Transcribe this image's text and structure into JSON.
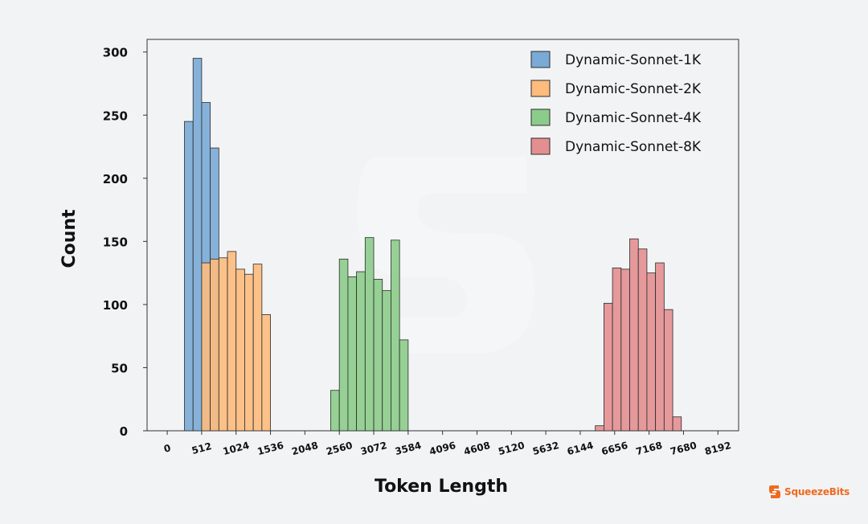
{
  "chart_data": {
    "type": "bar",
    "subtype": "histogram",
    "xlabel": "Token Length",
    "ylabel": "Count",
    "xlim": [
      -300,
      8500
    ],
    "ylim": [
      0,
      310
    ],
    "xticks": [
      0,
      512,
      1024,
      1536,
      2048,
      2560,
      3072,
      3584,
      4096,
      4608,
      5120,
      5632,
      6144,
      6656,
      7168,
      7680,
      8192
    ],
    "yticks": [
      0,
      50,
      100,
      150,
      200,
      250,
      300
    ],
    "grid": false,
    "legend_position": "top-right",
    "series": [
      {
        "name": "Dynamic-Sonnet-1K",
        "color": "#7aaad6",
        "bin_edges": [
          0,
          256,
          384,
          512,
          640,
          768
        ],
        "values": [
          0,
          245,
          295,
          260,
          224
        ]
      },
      {
        "name": "Dynamic-Sonnet-2K",
        "color": "#fdbb7c",
        "bin_edges": [
          512,
          640,
          768,
          896,
          1024,
          1152,
          1280,
          1408,
          1536
        ],
        "values": [
          133,
          136,
          137,
          142,
          128,
          124,
          132,
          92
        ]
      },
      {
        "name": "Dynamic-Sonnet-4K",
        "color": "#8ccc8a",
        "bin_edges": [
          2048,
          2432,
          2560,
          2688,
          2816,
          2944,
          3072,
          3200,
          3328,
          3456,
          3584
        ],
        "values": [
          0,
          32,
          136,
          122,
          126,
          153,
          120,
          111,
          151,
          72
        ]
      },
      {
        "name": "Dynamic-Sonnet-8K",
        "color": "#e38f91",
        "bin_edges": [
          5632,
          6368,
          6496,
          6624,
          6752,
          6880,
          7008,
          7136,
          7264,
          7392,
          7520,
          7648,
          7776,
          7904
        ],
        "values": [
          0,
          4,
          101,
          129,
          128,
          152,
          144,
          125,
          133,
          96,
          11,
          0,
          0
        ]
      }
    ]
  },
  "brand": {
    "name": "SqueezeBits",
    "logo_color": "#ef6a1f"
  }
}
